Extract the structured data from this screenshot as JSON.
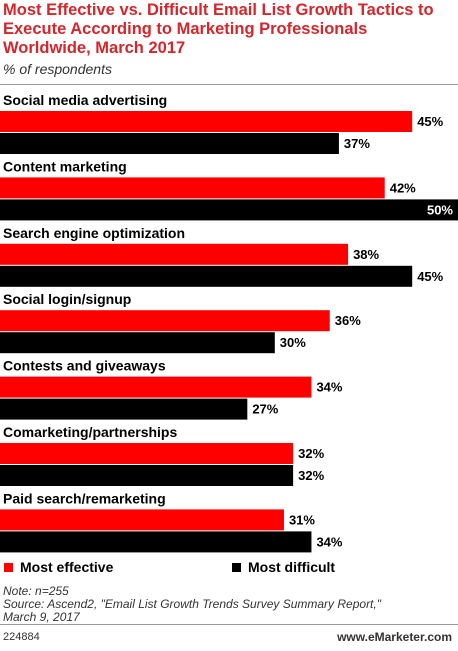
{
  "header": {
    "title": "Most Effective vs. Difficult Email List Growth Tactics to Execute According to Marketing Professionals Worldwide, March 2017",
    "subtitle": "% of respondents"
  },
  "chart_data": {
    "type": "bar",
    "orientation": "horizontal",
    "categories": [
      "Social media advertising",
      "Content marketing",
      "Search engine optimization",
      "Social login/signup",
      "Contests and giveaways",
      "Comarketing/partnerships",
      "Paid search/remarketing"
    ],
    "series": [
      {
        "name": "Most effective",
        "color": "#ff0000",
        "values": [
          45,
          42,
          38,
          36,
          34,
          32,
          31
        ]
      },
      {
        "name": "Most difficult",
        "color": "#000000",
        "values": [
          37,
          50,
          45,
          30,
          27,
          32,
          34
        ]
      }
    ],
    "value_suffix": "%",
    "xlim": [
      0,
      50
    ],
    "grid": false,
    "legend": "bottom"
  },
  "legend": {
    "effective_label": "Most effective",
    "difficult_label": "Most difficult",
    "effective_color": "#ff0000",
    "difficult_color": "#000000"
  },
  "footnote": {
    "note": "Note: n=255",
    "source_line1": "Source: Ascend2, \"Email List Growth Trends Survey Summary Report,\"",
    "source_line2": "March 9, 2017"
  },
  "footer": {
    "chart_id": "224884",
    "brand": "www.eMarketer.com"
  }
}
